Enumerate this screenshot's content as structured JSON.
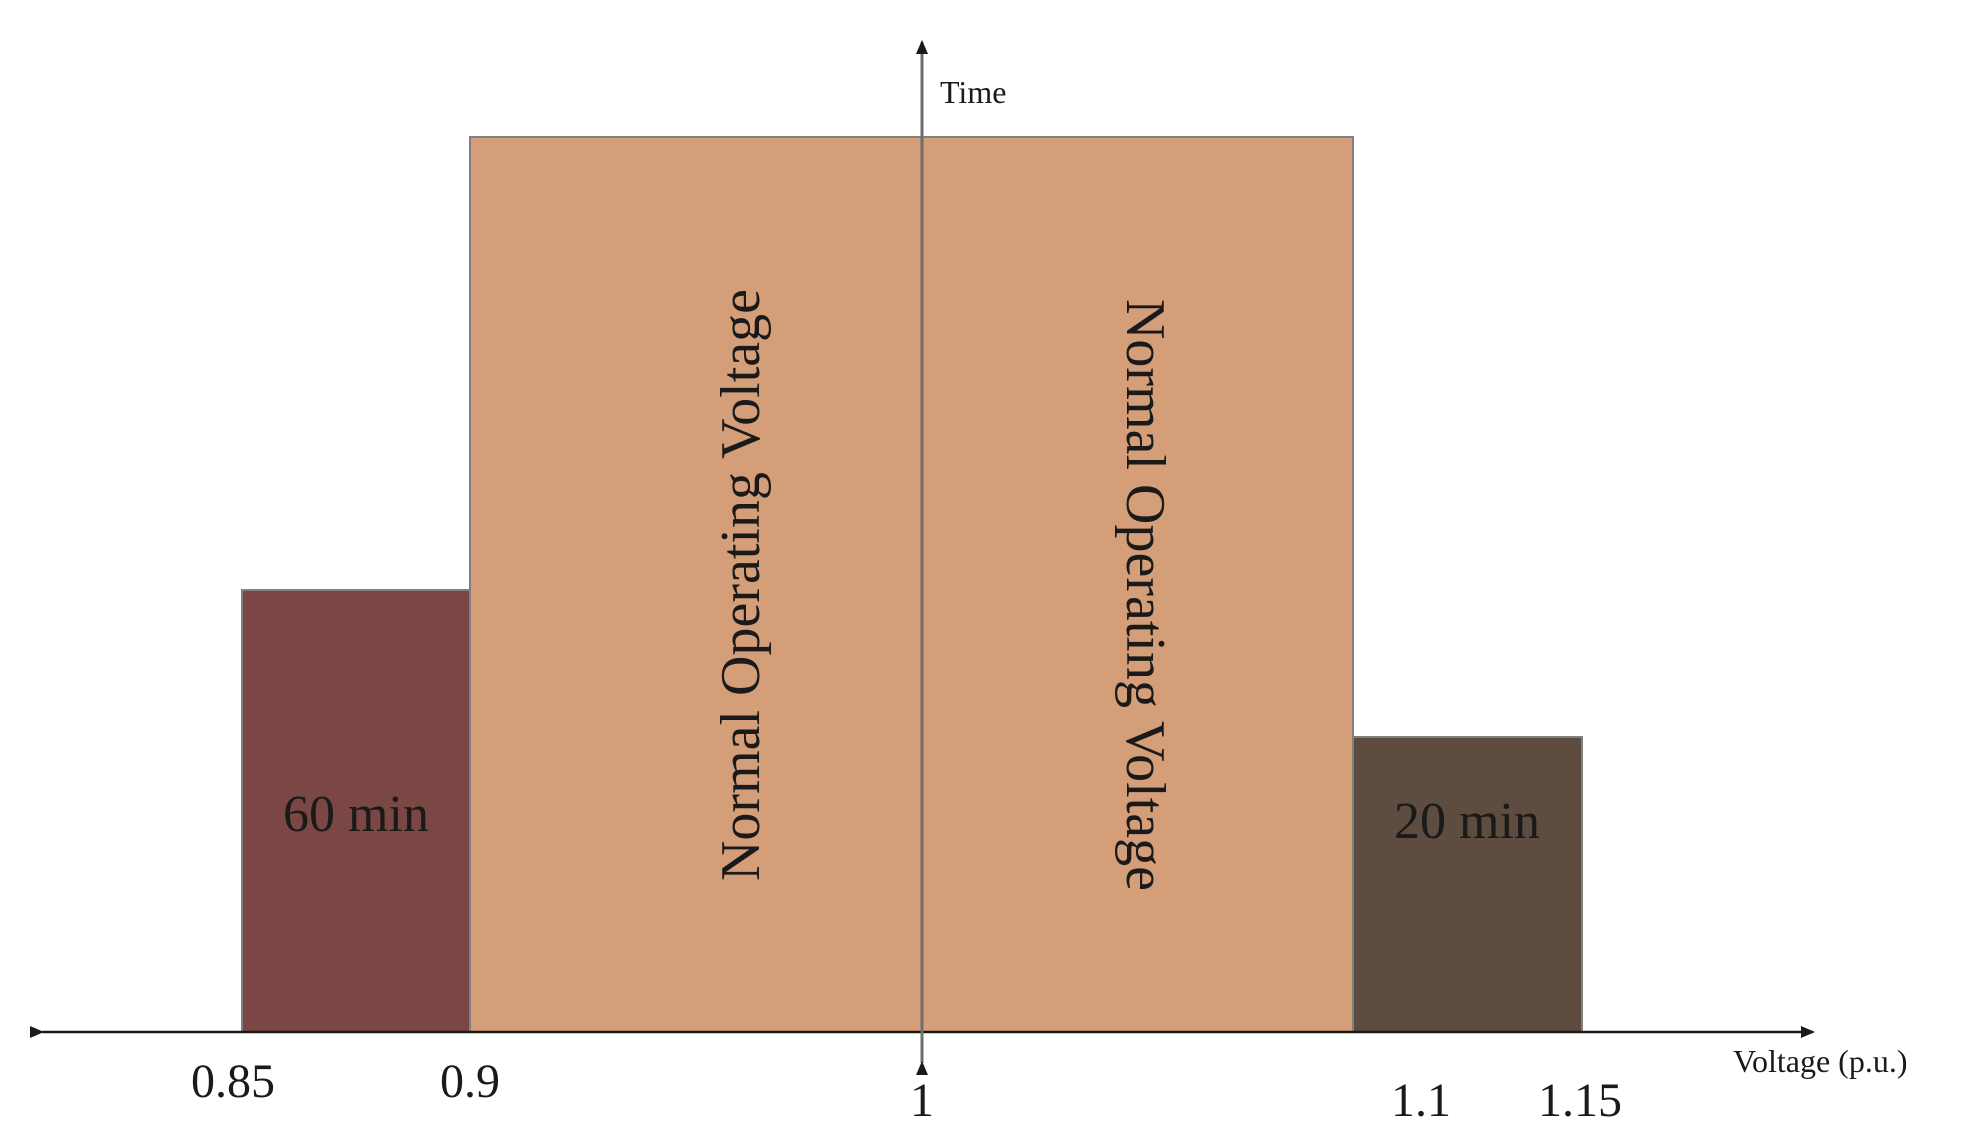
{
  "axes": {
    "x_label": "Voltage (p.u.)",
    "y_label": "Time",
    "ticks": [
      "0.85",
      "0.9",
      "1",
      "1.1",
      "1.15"
    ]
  },
  "regions": [
    {
      "id": "undervoltage",
      "label": "60 min",
      "color": "#7b4744"
    },
    {
      "id": "normal-left",
      "label": "Normal Operating Voltage",
      "color": "#d49e78"
    },
    {
      "id": "normal-right",
      "label": "Normal Operating Voltage",
      "color": "#d49e78"
    },
    {
      "id": "overvoltage",
      "label": "20 min",
      "color": "#5d4c3f"
    }
  ],
  "colors": {
    "axis": "#1a1a1a",
    "center_axis": "#6e6e6e",
    "region_border": "#808080"
  }
}
